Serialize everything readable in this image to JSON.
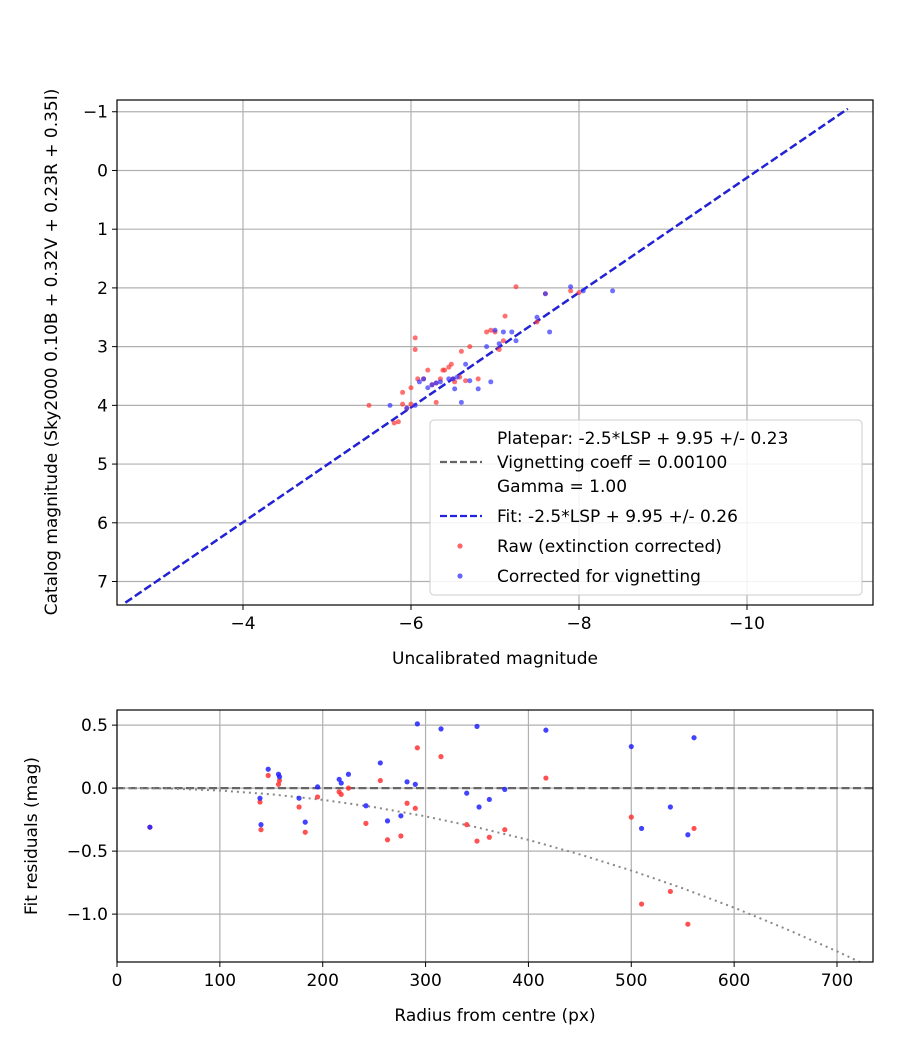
{
  "chart_data": [
    {
      "type": "scatter",
      "xlabel": "Uncalibrated magnitude",
      "ylabel": "Catalog magnitude (Sky2000 0.10B + 0.32V + 0.23R + 0.35I)",
      "xlim": [
        -2.5,
        -11.5
      ],
      "ylim": [
        7.4,
        -1.2
      ],
      "x_inverted": true,
      "y_inverted": true,
      "xticks": [
        -4,
        -6,
        -8,
        -10
      ],
      "xtick_labels": [
        "−4",
        "−6",
        "−8",
        "−10"
      ],
      "yticks": [
        -1,
        0,
        1,
        2,
        3,
        4,
        5,
        6,
        7
      ],
      "ytick_labels": [
        "−1",
        "0",
        "1",
        "2",
        "3",
        "4",
        "5",
        "6",
        "7"
      ],
      "grid": true,
      "legend_position": "lower-right",
      "legend": [
        {
          "label": "Platepar: -2.5*LSP + 9.95 +/- 0.23",
          "style": "none"
        },
        {
          "label": "Vignetting coeff = 0.00100",
          "style": "dashed",
          "color": "#666666"
        },
        {
          "label": "Gamma = 1.00",
          "style": "none"
        },
        {
          "label": "Fit: -2.5*LSP + 9.95 +/- 0.26",
          "style": "dashed",
          "color": "#2222dd"
        },
        {
          "label": "Raw (extinction corrected)",
          "style": "dot",
          "color": "#ff3333"
        },
        {
          "label": "Corrected for vignetting",
          "style": "dot",
          "color": "#3333ff"
        }
      ],
      "lines": [
        {
          "name": "Platepar",
          "color": "#666666",
          "dash": true,
          "x": [
            -2.6,
            -11.2
          ],
          "y": [
            7.36,
            -1.05
          ]
        },
        {
          "name": "Fit",
          "color": "#2222dd",
          "dash": true,
          "x": [
            -2.6,
            -11.2
          ],
          "y": [
            7.36,
            -1.05
          ]
        }
      ],
      "series": [
        {
          "name": "Raw (extinction corrected)",
          "color": "#ff3333",
          "points": [
            [
              -5.5,
              4.0
            ],
            [
              -5.8,
              4.3
            ],
            [
              -5.85,
              4.28
            ],
            [
              -5.9,
              3.98
            ],
            [
              -5.95,
              4.05
            ],
            [
              -6.0,
              3.98
            ],
            [
              -5.9,
              3.78
            ],
            [
              -6.0,
              3.7
            ],
            [
              -6.05,
              2.85
            ],
            [
              -6.05,
              3.05
            ],
            [
              -6.08,
              3.55
            ],
            [
              -6.15,
              3.55
            ],
            [
              -6.2,
              3.4
            ],
            [
              -6.25,
              3.65
            ],
            [
              -6.3,
              3.62
            ],
            [
              -6.3,
              3.95
            ],
            [
              -6.35,
              3.55
            ],
            [
              -6.38,
              3.4
            ],
            [
              -6.4,
              3.4
            ],
            [
              -6.45,
              3.35
            ],
            [
              -6.48,
              3.3
            ],
            [
              -6.5,
              3.55
            ],
            [
              -6.52,
              3.6
            ],
            [
              -6.58,
              3.52
            ],
            [
              -6.6,
              3.08
            ],
            [
              -6.65,
              3.58
            ],
            [
              -6.7,
              3.0
            ],
            [
              -6.8,
              3.55
            ],
            [
              -6.9,
              2.75
            ],
            [
              -6.95,
              2.72
            ],
            [
              -7.0,
              2.75
            ],
            [
              -7.05,
              3.05
            ],
            [
              -7.1,
              2.9
            ],
            [
              -7.12,
              2.48
            ],
            [
              -7.25,
              1.98
            ],
            [
              -7.5,
              2.58
            ],
            [
              -7.6,
              2.1
            ],
            [
              -7.9,
              2.05
            ],
            [
              -8.0,
              2.08
            ]
          ]
        },
        {
          "name": "Corrected for vignetting",
          "color": "#3333ff",
          "points": [
            [
              -5.75,
              4.0
            ],
            [
              -5.95,
              4.05
            ],
            [
              -6.05,
              4.0
            ],
            [
              -6.1,
              3.6
            ],
            [
              -6.15,
              3.55
            ],
            [
              -6.2,
              3.7
            ],
            [
              -6.25,
              3.65
            ],
            [
              -6.3,
              3.62
            ],
            [
              -6.35,
              3.6
            ],
            [
              -6.45,
              3.55
            ],
            [
              -6.5,
              3.55
            ],
            [
              -6.52,
              3.72
            ],
            [
              -6.55,
              3.52
            ],
            [
              -6.6,
              3.95
            ],
            [
              -6.65,
              3.3
            ],
            [
              -6.7,
              3.58
            ],
            [
              -6.8,
              3.72
            ],
            [
              -6.9,
              3.0
            ],
            [
              -6.95,
              3.6
            ],
            [
              -7.0,
              2.72
            ],
            [
              -7.05,
              2.95
            ],
            [
              -7.1,
              2.75
            ],
            [
              -7.2,
              2.75
            ],
            [
              -7.25,
              2.9
            ],
            [
              -7.5,
              2.5
            ],
            [
              -7.6,
              2.1
            ],
            [
              -7.65,
              2.75
            ],
            [
              -7.9,
              1.98
            ],
            [
              -8.05,
              2.05
            ],
            [
              -8.4,
              2.05
            ]
          ]
        }
      ]
    },
    {
      "type": "scatter",
      "xlabel": "Radius from centre (px)",
      "ylabel": "Fit residuals (mag)",
      "xlim": [
        0,
        735
      ],
      "ylim": [
        -1.38,
        0.62
      ],
      "xticks": [
        0,
        100,
        200,
        300,
        400,
        500,
        600,
        700
      ],
      "xtick_labels": [
        "0",
        "100",
        "200",
        "300",
        "400",
        "500",
        "600",
        "700"
      ],
      "yticks": [
        0.5,
        0.0,
        -0.5,
        -1.0
      ],
      "ytick_labels": [
        "0.5",
        "0.0",
        "−0.5",
        "−1.0"
      ],
      "grid": true,
      "reference_lines": [
        {
          "type": "horizontal",
          "y": 0.0,
          "color": "#666666",
          "dash": "dashed"
        },
        {
          "type": "curve",
          "color": "#888888",
          "dash": "dotted",
          "x": [
            0,
            50,
            100,
            150,
            200,
            250,
            300,
            350,
            400,
            450,
            500,
            550,
            600,
            650,
            700,
            735
          ],
          "y": [
            0,
            -0.003,
            -0.019,
            -0.049,
            -0.093,
            -0.151,
            -0.224,
            -0.311,
            -0.411,
            -0.526,
            -0.654,
            -0.795,
            -0.949,
            -1.116,
            -1.295,
            -1.43
          ]
        }
      ],
      "series": [
        {
          "name": "Raw (extinction corrected)",
          "color": "#ff3333",
          "points": [
            [
              32,
              -0.31
            ],
            [
              139,
              -0.11
            ],
            [
              140,
              -0.33
            ],
            [
              147,
              0.1
            ],
            [
              157,
              0.03
            ],
            [
              158,
              0.06
            ],
            [
              177,
              -0.15
            ],
            [
              183,
              -0.35
            ],
            [
              195,
              -0.07
            ],
            [
              216,
              -0.03
            ],
            [
              218,
              -0.05
            ],
            [
              225,
              0.0
            ],
            [
              242,
              -0.28
            ],
            [
              256,
              0.06
            ],
            [
              263,
              -0.41
            ],
            [
              276,
              -0.38
            ],
            [
              282,
              -0.12
            ],
            [
              290,
              -0.16
            ],
            [
              292,
              0.32
            ],
            [
              315,
              0.25
            ],
            [
              340,
              -0.29
            ],
            [
              350,
              -0.42
            ],
            [
              362,
              -0.39
            ],
            [
              377,
              -0.33
            ],
            [
              417,
              0.08
            ],
            [
              500,
              -0.23
            ],
            [
              510,
              -0.92
            ],
            [
              538,
              -0.82
            ],
            [
              555,
              -1.08
            ],
            [
              561,
              -0.32
            ]
          ]
        },
        {
          "name": "Corrected for vignetting",
          "color": "#2222ff",
          "points": [
            [
              32,
              -0.31
            ],
            [
              139,
              -0.08
            ],
            [
              140,
              -0.29
            ],
            [
              147,
              0.15
            ],
            [
              157,
              0.11
            ],
            [
              158,
              0.09
            ],
            [
              177,
              -0.08
            ],
            [
              183,
              -0.27
            ],
            [
              195,
              0.01
            ],
            [
              216,
              0.07
            ],
            [
              218,
              0.04
            ],
            [
              225,
              0.11
            ],
            [
              242,
              -0.14
            ],
            [
              256,
              0.2
            ],
            [
              263,
              -0.26
            ],
            [
              276,
              -0.22
            ],
            [
              282,
              0.05
            ],
            [
              290,
              0.03
            ],
            [
              292,
              0.51
            ],
            [
              315,
              0.47
            ],
            [
              340,
              -0.04
            ],
            [
              350,
              0.49
            ],
            [
              352,
              -0.15
            ],
            [
              362,
              -0.09
            ],
            [
              377,
              -0.01
            ],
            [
              417,
              0.46
            ],
            [
              500,
              0.33
            ],
            [
              510,
              -0.32
            ],
            [
              538,
              -0.15
            ],
            [
              555,
              -0.37
            ],
            [
              561,
              0.4
            ]
          ]
        }
      ]
    }
  ]
}
